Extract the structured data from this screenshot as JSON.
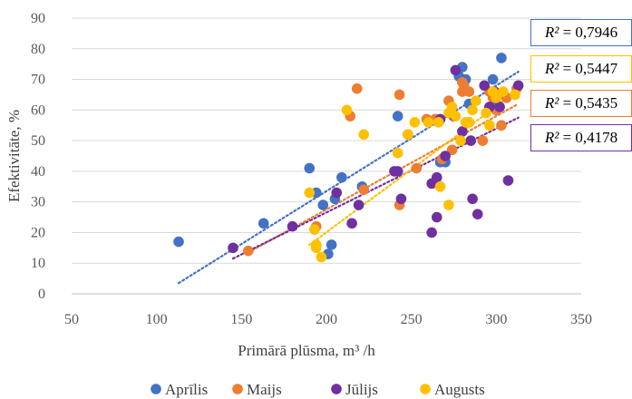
{
  "chart_data": {
    "type": "scatter",
    "xlabel": "Primārā plūsma, m³ /h",
    "ylabel": "Efektivitāte, %",
    "xlim": [
      50,
      350
    ],
    "ylim": [
      0,
      90
    ],
    "xticks": [
      50,
      100,
      150,
      200,
      250,
      300,
      350
    ],
    "yticks": [
      0,
      10,
      20,
      30,
      40,
      50,
      60,
      70,
      80,
      90
    ],
    "grid": "horizontal",
    "legend": "bottom",
    "series": [
      {
        "name": "Aprīlis",
        "color": "#4472C4",
        "points": [
          [
            113,
            17
          ],
          [
            163,
            23
          ],
          [
            190,
            41
          ],
          [
            194,
            33
          ],
          [
            198,
            29
          ],
          [
            201,
            13
          ],
          [
            203,
            16
          ],
          [
            205,
            31
          ],
          [
            209,
            38
          ],
          [
            221,
            35
          ],
          [
            242,
            58
          ],
          [
            267,
            43
          ],
          [
            270,
            43
          ],
          [
            278,
            71
          ],
          [
            280,
            74
          ],
          [
            282,
            70
          ],
          [
            284,
            62
          ],
          [
            298,
            70
          ],
          [
            300,
            65
          ],
          [
            303,
            77
          ],
          [
            300,
            62
          ]
        ],
        "trendline": {
          "x": [
            113,
            313
          ],
          "y": [
            3.5,
            72.5
          ],
          "r2_label": "= 0,7946"
        }
      },
      {
        "name": "Maijs",
        "color": "#ED7D31",
        "points": [
          [
            154,
            14
          ],
          [
            193,
            21
          ],
          [
            194,
            22
          ],
          [
            218,
            67
          ],
          [
            214,
            58
          ],
          [
            222,
            34
          ],
          [
            243,
            29
          ],
          [
            243,
            65
          ],
          [
            253,
            41
          ],
          [
            259,
            57
          ],
          [
            264,
            57
          ],
          [
            268,
            44
          ],
          [
            272,
            63
          ],
          [
            274,
            47
          ],
          [
            280,
            66
          ],
          [
            280,
            69
          ],
          [
            281,
            68
          ],
          [
            284,
            66
          ],
          [
            292,
            50
          ],
          [
            296,
            66
          ],
          [
            298,
            64
          ],
          [
            300,
            60
          ],
          [
            303,
            55
          ],
          [
            306,
            64
          ],
          [
            312,
            67
          ]
        ],
        "trendline": {
          "x": [
            154,
            313
          ],
          "y": [
            13.5,
            62
          ],
          "r2_label": "= 0,5435"
        }
      },
      {
        "name": "Jūlijs",
        "color": "#7030A0",
        "points": [
          [
            145,
            15
          ],
          [
            180,
            22
          ],
          [
            206,
            33
          ],
          [
            215,
            23
          ],
          [
            219,
            29
          ],
          [
            240,
            40
          ],
          [
            242,
            40
          ],
          [
            244,
            31
          ],
          [
            248,
            52
          ],
          [
            262,
            36
          ],
          [
            262,
            20
          ],
          [
            265,
            38
          ],
          [
            265,
            25
          ],
          [
            267,
            57
          ],
          [
            270,
            45
          ],
          [
            275,
            58
          ],
          [
            276,
            73
          ],
          [
            280,
            53
          ],
          [
            285,
            50
          ],
          [
            286,
            31
          ],
          [
            289,
            26
          ],
          [
            293,
            68
          ],
          [
            296,
            61
          ],
          [
            299,
            66
          ],
          [
            302,
            61
          ],
          [
            307,
            37
          ],
          [
            313,
            68
          ]
        ],
        "trendline": {
          "x": [
            145,
            313
          ],
          "y": [
            11.5,
            57.5
          ],
          "r2_label": "= 0,4178"
        }
      },
      {
        "name": "Augusts",
        "color": "#FFC000",
        "points": [
          [
            190,
            33
          ],
          [
            193,
            21
          ],
          [
            194,
            15
          ],
          [
            194,
            16
          ],
          [
            197,
            12
          ],
          [
            212,
            60
          ],
          [
            222,
            52
          ],
          [
            242,
            46
          ],
          [
            248,
            52
          ],
          [
            252,
            56
          ],
          [
            260,
            56
          ],
          [
            266,
            56
          ],
          [
            267,
            35
          ],
          [
            272,
            29
          ],
          [
            272,
            59
          ],
          [
            274,
            61
          ],
          [
            276,
            58
          ],
          [
            279,
            50
          ],
          [
            282,
            56
          ],
          [
            284,
            56
          ],
          [
            286,
            60
          ],
          [
            288,
            63
          ],
          [
            294,
            59
          ],
          [
            296,
            55
          ],
          [
            298,
            66
          ],
          [
            300,
            64
          ],
          [
            304,
            66
          ],
          [
            311,
            65
          ]
        ],
        "trendline": {
          "x": [
            190,
            313
          ],
          "y": [
            16,
            66.5
          ],
          "r2_label": "= 0,5447"
        }
      }
    ]
  },
  "r2": {
    "label": "R² ",
    "aprilis": "= 0,7946",
    "augusts": "= 0,5447",
    "maijs": "= 0,5435",
    "julijs": "= 0,4178"
  }
}
